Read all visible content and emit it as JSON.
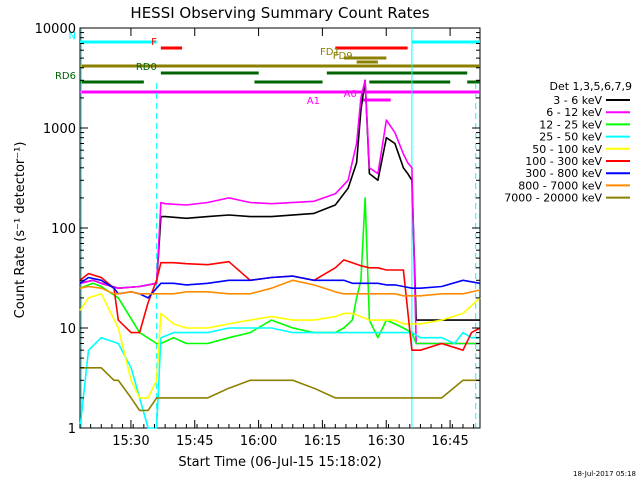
{
  "chart_data": {
    "type": "line",
    "title": "HESSI Observing Summary Count Rates",
    "xlabel": "Start Time (06-Jul-15 15:18:02)",
    "ylabel": "Count Rate (s⁻¹ detector⁻¹)",
    "ylog": true,
    "ylim": [
      1,
      10000
    ],
    "xlim_minutes_from_start": [
      0,
      94
    ],
    "x_ticks": [
      "15:30",
      "15:45",
      "16:00",
      "16:15",
      "16:30",
      "16:45"
    ],
    "y_ticks": [
      "1",
      "10",
      "100",
      "1000",
      "10000"
    ],
    "timestamp": "18-Jul-2017 05:18",
    "legend_title": "Det 1,3,5,6,7,9",
    "legend_position": "right",
    "series": [
      {
        "name": "3 - 6 keV",
        "color": "#000000",
        "x": [
          0,
          3,
          5,
          9,
          14,
          18,
          19,
          20,
          25,
          30,
          35,
          40,
          45,
          55,
          60,
          63,
          65,
          66,
          67,
          68,
          70,
          72,
          74,
          76,
          77,
          78,
          79,
          80,
          85,
          90,
          94
        ],
        "y": [
          28,
          30,
          28,
          25,
          26,
          28,
          130,
          130,
          125,
          130,
          135,
          130,
          130,
          140,
          170,
          250,
          450,
          1500,
          3000,
          350,
          300,
          800,
          700,
          400,
          350,
          300,
          12,
          12,
          12,
          12,
          12
        ]
      },
      {
        "name": "6 - 12 keV",
        "color": "#ff00ff",
        "x": [
          0,
          3,
          5,
          9,
          14,
          18,
          19,
          20,
          25,
          30,
          35,
          40,
          45,
          55,
          60,
          63,
          65,
          66,
          67,
          68,
          70,
          72,
          74,
          76,
          77,
          78,
          79,
          80,
          85,
          90,
          94
        ],
        "y": [
          28,
          30,
          28,
          25,
          26,
          28,
          180,
          175,
          170,
          180,
          200,
          180,
          175,
          185,
          220,
          300,
          700,
          2000,
          3000,
          400,
          350,
          1200,
          900,
          550,
          450,
          400,
          7,
          7,
          7,
          7,
          7
        ]
      },
      {
        "name": "12 - 25 keV",
        "color": "#00ff00",
        "x": [
          0,
          3,
          5,
          9,
          14,
          18,
          19,
          22,
          25,
          30,
          35,
          40,
          45,
          50,
          55,
          60,
          62,
          64,
          65,
          66,
          67,
          68,
          70,
          72,
          74,
          76,
          78,
          79,
          80,
          85,
          90,
          94
        ],
        "y": [
          25,
          28,
          26,
          20,
          9,
          7,
          7,
          8,
          7,
          7,
          8,
          9,
          12,
          10,
          9,
          9,
          10,
          12,
          20,
          30,
          200,
          12,
          8,
          12,
          11,
          10,
          9,
          7,
          7,
          7,
          7,
          7
        ]
      },
      {
        "name": "25 - 50 keV",
        "color": "#00ffff",
        "x": [
          0,
          2,
          5,
          9,
          12,
          14,
          16,
          18,
          19,
          22,
          25,
          30,
          35,
          40,
          45,
          50,
          55,
          60,
          62,
          64,
          66,
          68,
          70,
          72,
          74,
          76,
          78,
          80,
          85,
          88,
          90,
          92,
          94
        ],
        "y": [
          1,
          6,
          8,
          7,
          4,
          2,
          1,
          1,
          8,
          9,
          9,
          9,
          10,
          10,
          10,
          9,
          9,
          9,
          9,
          9,
          9,
          9,
          9,
          9,
          9,
          9,
          9,
          8,
          8,
          7,
          9,
          8,
          8
        ]
      },
      {
        "name": "50 - 100 keV",
        "color": "#ffff00",
        "x": [
          0,
          2,
          5,
          9,
          12,
          14,
          16,
          18,
          19,
          22,
          25,
          30,
          35,
          40,
          45,
          50,
          55,
          60,
          62,
          64,
          66,
          68,
          70,
          72,
          74,
          76,
          78,
          80,
          85,
          90,
          94
        ],
        "y": [
          15,
          20,
          22,
          10,
          3,
          2,
          2,
          3,
          14,
          11,
          10,
          10,
          11,
          12,
          13,
          12,
          12,
          13,
          14,
          14,
          13,
          12,
          12,
          12,
          12,
          11,
          11,
          11,
          12,
          14,
          20
        ]
      },
      {
        "name": "100 - 300 keV",
        "color": "#ff0000",
        "x": [
          0,
          2,
          5,
          8,
          9,
          12,
          14,
          16,
          18,
          19,
          22,
          25,
          30,
          35,
          40,
          45,
          50,
          55,
          60,
          62,
          64,
          66,
          68,
          70,
          72,
          74,
          76,
          78,
          80,
          85,
          90,
          92,
          94
        ],
        "y": [
          30,
          35,
          32,
          25,
          12,
          9,
          9,
          18,
          30,
          45,
          45,
          44,
          43,
          46,
          30,
          32,
          33,
          30,
          40,
          48,
          45,
          42,
          40,
          40,
          38,
          38,
          38,
          6,
          6,
          7,
          6,
          9,
          10
        ]
      },
      {
        "name": "300 - 800 keV",
        "color": "#0000ff",
        "x": [
          0,
          2,
          5,
          8,
          9,
          12,
          14,
          16,
          18,
          19,
          22,
          25,
          30,
          35,
          40,
          45,
          50,
          55,
          60,
          62,
          64,
          66,
          68,
          70,
          72,
          74,
          76,
          78,
          80,
          85,
          90,
          94
        ],
        "y": [
          28,
          32,
          30,
          25,
          22,
          23,
          22,
          20,
          25,
          28,
          28,
          27,
          28,
          30,
          30,
          32,
          33,
          30,
          30,
          30,
          28,
          28,
          28,
          28,
          27,
          27,
          26,
          25,
          25,
          26,
          30,
          28
        ]
      },
      {
        "name": "800 - 7000 keV",
        "color": "#ff8c00",
        "x": [
          0,
          2,
          5,
          8,
          9,
          12,
          14,
          16,
          18,
          19,
          22,
          25,
          30,
          35,
          40,
          45,
          50,
          55,
          60,
          62,
          64,
          66,
          68,
          70,
          72,
          74,
          76,
          78,
          80,
          85,
          90,
          94
        ],
        "y": [
          25,
          26,
          25,
          22,
          22,
          23,
          22,
          22,
          22,
          22,
          22,
          23,
          23,
          22,
          22,
          25,
          30,
          27,
          23,
          22,
          22,
          22,
          22,
          22,
          22,
          22,
          21,
          21,
          21,
          22,
          22,
          24
        ]
      },
      {
        "name": "7000 - 20000 keV",
        "color": "#8b8000",
        "x": [
          0,
          2,
          5,
          8,
          9,
          12,
          14,
          16,
          18,
          19,
          22,
          25,
          30,
          35,
          40,
          45,
          50,
          55,
          60,
          62,
          64,
          66,
          68,
          70,
          72,
          74,
          76,
          78,
          80,
          85,
          90,
          94
        ],
        "y": [
          4,
          4,
          4,
          3,
          3,
          2,
          1.5,
          1.5,
          2,
          2,
          2,
          2,
          2,
          2.5,
          3,
          3,
          3,
          2.5,
          2,
          2,
          2,
          2,
          2,
          2,
          2,
          2,
          2,
          2,
          2,
          2,
          3,
          3
        ]
      }
    ],
    "flags": [
      {
        "label": "N",
        "color": "#00ffff",
        "start": 0,
        "end": 18
      },
      {
        "label": "",
        "color": "#00ffff",
        "start": 78,
        "end": 94
      },
      {
        "label": "F",
        "color": "#ff0000",
        "start": 19,
        "end": 24
      },
      {
        "label": "",
        "color": "#ff0000",
        "start": 60,
        "end": 77
      },
      {
        "label": "FD1",
        "color": "#8b8000",
        "start": 62,
        "end": 72
      },
      {
        "label": "FD9",
        "color": "#8b8000",
        "start": 65,
        "end": 70
      },
      {
        "label": "",
        "color": "#8b8000",
        "start": 0,
        "end": 94
      },
      {
        "label": "RD0",
        "color": "#006400",
        "start": 19,
        "end": 42
      },
      {
        "label": "",
        "color": "#006400",
        "start": 58,
        "end": 91
      },
      {
        "label": "RD6",
        "color": "#006400",
        "start": 0,
        "end": 15
      },
      {
        "label": "",
        "color": "#006400",
        "start": 41,
        "end": 57
      },
      {
        "label": "",
        "color": "#006400",
        "start": 68,
        "end": 87
      },
      {
        "label": "",
        "color": "#006400",
        "start": 91,
        "end": 94
      },
      {
        "label": "A1",
        "color": "#ff00ff",
        "start": 0,
        "end": 94
      },
      {
        "label": "A0",
        "color": "#ff00ff",
        "start": 66,
        "end": 73
      }
    ]
  }
}
